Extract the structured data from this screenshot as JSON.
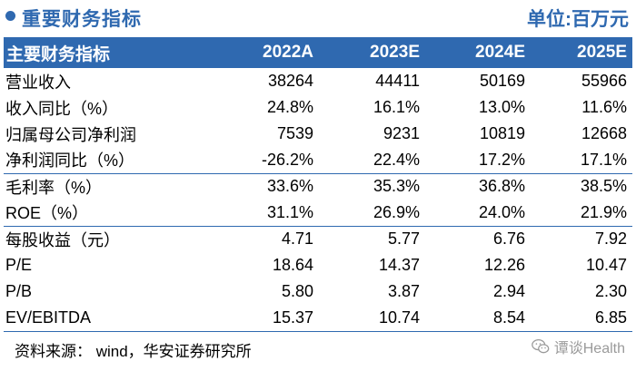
{
  "header": {
    "title": "重要财务指标",
    "unit": "单位:百万元"
  },
  "table": {
    "columns": [
      "主要财务指标",
      "2022A",
      "2023E",
      "2024E",
      "2025E"
    ],
    "rows": [
      {
        "label": "营业收入",
        "values": [
          "38264",
          "44411",
          "50169",
          "55966"
        ]
      },
      {
        "label": "收入同比（%）",
        "values": [
          "24.8%",
          "16.1%",
          "13.0%",
          "11.6%"
        ]
      },
      {
        "label": "归属母公司净利润",
        "values": [
          "7539",
          "9231",
          "10819",
          "12668"
        ]
      },
      {
        "label": "净利润同比（%）",
        "values": [
          "-26.2%",
          "22.4%",
          "17.2%",
          "17.1%"
        ]
      },
      {
        "label": "毛利率（%）",
        "values": [
          "33.6%",
          "35.3%",
          "36.8%",
          "38.5%"
        ]
      },
      {
        "label": "ROE（%）",
        "values": [
          "31.1%",
          "26.9%",
          "24.0%",
          "21.9%"
        ]
      },
      {
        "label": "每股收益（元）",
        "values": [
          "4.71",
          "5.77",
          "6.76",
          "7.92"
        ]
      },
      {
        "label": "P/E",
        "values": [
          "18.64",
          "14.37",
          "12.26",
          "10.47"
        ]
      },
      {
        "label": "P/B",
        "values": [
          "5.80",
          "3.87",
          "2.94",
          "2.30"
        ]
      },
      {
        "label": "EV/EBITDA",
        "values": [
          "15.37",
          "10.74",
          "8.54",
          "6.85"
        ]
      }
    ]
  },
  "footer": {
    "source": "资料来源： wind，华安证券研究所",
    "watermark": "谭谈Health",
    "watermark_icon": "wechat-icon"
  },
  "colors": {
    "accent": "#2f69b0"
  }
}
